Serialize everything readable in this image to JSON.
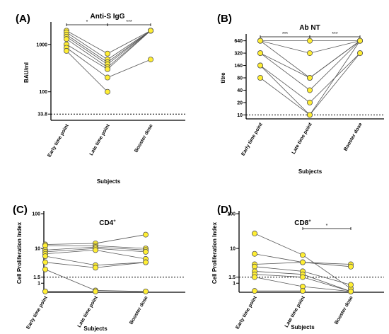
{
  "chart_data": [
    {
      "type": "scatter",
      "panel_label": "(A)",
      "title": "Anti-S IgG",
      "title_sup": "",
      "xlabel": "Subjects",
      "ylabel": "BAU/ml",
      "yscale": "log",
      "ylim": [
        25,
        2600
      ],
      "yticks": [
        {
          "value": 33.8,
          "label": "33.8"
        },
        {
          "value": 100,
          "label": "100"
        },
        {
          "value": 1000,
          "label": "1000"
        }
      ],
      "reference_line": 33.8,
      "categories": [
        "Early time point",
        "Late time point",
        "Booster dose"
      ],
      "subjects": [
        [
          1950,
          640,
          1950
        ],
        [
          1800,
          480,
          1950
        ],
        [
          1600,
          420,
          1950
        ],
        [
          1450,
          380,
          1950
        ],
        [
          1300,
          330,
          1950
        ],
        [
          1000,
          300,
          1950
        ],
        [
          850,
          200,
          480
        ],
        [
          730,
          100,
          null
        ]
      ],
      "significance": [
        {
          "from": 0,
          "to": 1,
          "label": "*"
        },
        {
          "from": 1,
          "to": 2,
          "label": "***"
        }
      ]
    },
    {
      "type": "scatter",
      "panel_label": "(B)",
      "title": "Ab NT",
      "title_sup": "",
      "xlabel": "Subjects",
      "ylabel": "titre",
      "yscale": "log",
      "ylim": [
        8,
        800
      ],
      "yticks": [
        {
          "value": 10,
          "label": "10"
        },
        {
          "value": 20,
          "label": "20"
        },
        {
          "value": 40,
          "label": "40"
        },
        {
          "value": 80,
          "label": "80"
        },
        {
          "value": 160,
          "label": "160"
        },
        {
          "value": 320,
          "label": "320"
        },
        {
          "value": 640,
          "label": "640"
        }
      ],
      "reference_line": 10,
      "categories": [
        "Early time point",
        "Late time point",
        "Booster dose"
      ],
      "subjects": [
        [
          640,
          640,
          640
        ],
        [
          640,
          320,
          640
        ],
        [
          640,
          80,
          640
        ],
        [
          320,
          80,
          640
        ],
        [
          320,
          40,
          640
        ],
        [
          160,
          20,
          320
        ],
        [
          160,
          10,
          640
        ],
        [
          80,
          10,
          320
        ]
      ],
      "significance": [
        {
          "from": 0,
          "to": 1,
          "label": "***"
        },
        {
          "from": 1,
          "to": 2,
          "label": "***"
        }
      ]
    },
    {
      "type": "scatter",
      "panel_label": "(C)",
      "title": "CD4",
      "title_sup": "+",
      "xlabel": "Subjects",
      "ylabel": "Cell Proliferation Index",
      "yscale": "log",
      "ylim": [
        0.55,
        100
      ],
      "yticks": [
        {
          "value": 1,
          "label": "1"
        },
        {
          "value": 1.5,
          "label": "1.5"
        },
        {
          "value": 10,
          "label": "10"
        },
        {
          "value": 100,
          "label": "100"
        }
      ],
      "reference_line": 1.5,
      "categories": [
        "Early time point",
        "Late time point",
        "Booster dose"
      ],
      "subjects": [
        [
          13,
          14,
          25
        ],
        [
          12,
          12,
          10
        ],
        [
          9,
          11,
          9
        ],
        [
          8,
          10,
          8
        ],
        [
          7,
          9,
          5
        ],
        [
          6,
          3.3,
          4
        ],
        [
          4,
          2.8,
          4
        ],
        [
          2.5,
          0.62,
          0.58
        ],
        [
          0.58,
          0.58,
          null
        ]
      ],
      "significance": []
    },
    {
      "type": "scatter",
      "panel_label": "(D)",
      "title": "CD8",
      "title_sup": "+",
      "xlabel": "Subjects",
      "ylabel": "Cell Proliferation Index",
      "yscale": "log",
      "ylim": [
        0.55,
        100
      ],
      "yticks": [
        {
          "value": 1,
          "label": "1"
        },
        {
          "value": 1.5,
          "label": "1.5"
        },
        {
          "value": 10,
          "label": "10"
        },
        {
          "value": 100,
          "label": "100"
        }
      ],
      "reference_line": 1.5,
      "categories": [
        "Early time point",
        "Late time point",
        "Booster dose"
      ],
      "subjects": [
        [
          27,
          6.5,
          0.7
        ],
        [
          7,
          4,
          3.5
        ],
        [
          3.5,
          4,
          3
        ],
        [
          3,
          2.2,
          0.9
        ],
        [
          2.2,
          1.8,
          0.58
        ],
        [
          1.8,
          1.5,
          0.58
        ],
        [
          1.5,
          0.8,
          0.58
        ],
        [
          0.6,
          0.6,
          null
        ]
      ],
      "significance": [
        {
          "from": 1,
          "to": 2,
          "label": "*"
        }
      ]
    }
  ]
}
